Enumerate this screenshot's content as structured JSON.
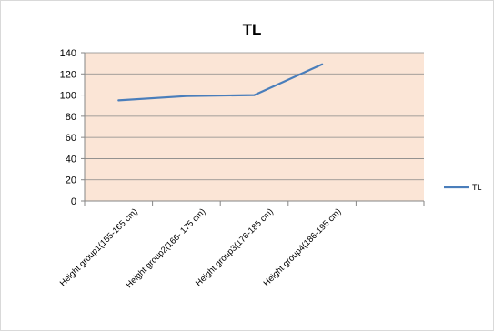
{
  "chart_data": {
    "type": "line",
    "title": "TL",
    "xlabel": "",
    "ylabel": "",
    "categories": [
      "Height group1(155-165 cm)",
      "Height group2(166- 175 cm)",
      "Height group3(176-185 cm)",
      "Height group4(186-195 cm)"
    ],
    "extra_empty_category_slots": 1,
    "series": [
      {
        "name": "TL",
        "values": [
          95,
          99,
          100,
          129
        ],
        "color": "#4a7ebb"
      }
    ],
    "ylim": [
      0,
      140
    ],
    "yticks": [
      0,
      20,
      40,
      60,
      80,
      100,
      120,
      140
    ],
    "grid": true,
    "plot_background": "#fbe5d6",
    "gridline_color": "#868686",
    "legend_position": "right"
  }
}
